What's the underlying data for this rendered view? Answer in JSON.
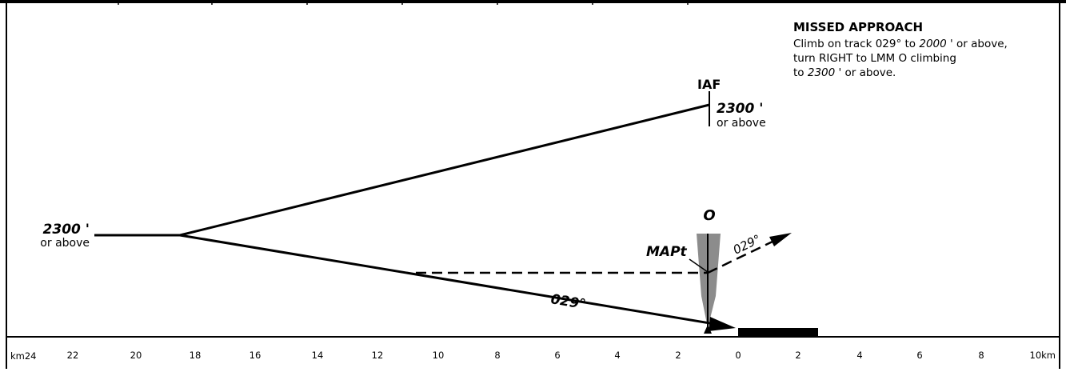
{
  "missed_approach": {
    "heading": "MISSED APPROACH",
    "lines": [
      "Climb on track 029° to ",
      "2000",
      " ' or above,",
      "turn RIGHT to LMM O climbing",
      "to ",
      "2300",
      " ' or above."
    ]
  },
  "iaf": {
    "label": "IAF",
    "altitude": "2300",
    "altitude_unit": " '",
    "constraint": "or above"
  },
  "initial_fix": {
    "altitude": "2300",
    "altitude_unit": " '",
    "constraint": "or above"
  },
  "outer_marker": {
    "label": "O"
  },
  "mapt": {
    "label": "MAPt"
  },
  "missed_track": {
    "label": "029°"
  },
  "final_track": {
    "label": "029°"
  },
  "scale": {
    "left_unit": "km24",
    "right_unit": "10km",
    "before_threshold": [
      "22",
      "20",
      "18",
      "16",
      "14",
      "12",
      "10",
      "8",
      "6",
      "4",
      "2"
    ],
    "after_threshold": [
      "0",
      "2",
      "4",
      "6",
      "8"
    ]
  },
  "colors": {
    "ink": "#000000",
    "beam": "#8c8c8c"
  }
}
